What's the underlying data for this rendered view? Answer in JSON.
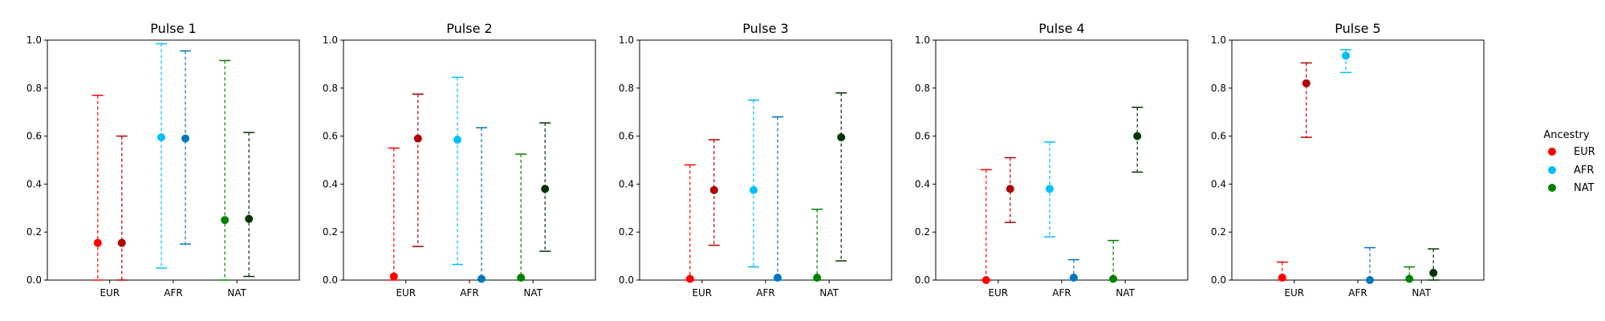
{
  "chart_data": [
    {
      "type": "errorbar",
      "title": "Pulse 1",
      "categories": [
        "EUR",
        "AFR",
        "NAT"
      ],
      "ylim": [
        0,
        1
      ],
      "yticks": [
        "0.0",
        "0.2",
        "0.4",
        "0.6",
        "0.8",
        "1.0"
      ],
      "points": [
        {
          "category": "EUR",
          "slot": 0,
          "color": "#ff0000",
          "y": 0.155,
          "low": 0.0,
          "high": 0.77
        },
        {
          "category": "EUR",
          "slot": 1,
          "color": "#b30000",
          "y": 0.155,
          "low": 0.0,
          "high": 0.6
        },
        {
          "category": "AFR",
          "slot": 0,
          "color": "#00bfff",
          "y": 0.595,
          "low": 0.05,
          "high": 0.985
        },
        {
          "category": "AFR",
          "slot": 1,
          "color": "#0077bb",
          "y": 0.59,
          "low": 0.15,
          "high": 0.955
        },
        {
          "category": "NAT",
          "slot": 0,
          "color": "#008000",
          "y": 0.25,
          "low": 0.0,
          "high": 0.915
        },
        {
          "category": "NAT",
          "slot": 1,
          "color": "#003300",
          "y": 0.255,
          "low": 0.015,
          "high": 0.615
        }
      ]
    },
    {
      "type": "errorbar",
      "title": "Pulse 2",
      "categories": [
        "EUR",
        "AFR",
        "NAT"
      ],
      "ylim": [
        0,
        1
      ],
      "yticks": [
        "0.0",
        "0.2",
        "0.4",
        "0.6",
        "0.8",
        "1.0"
      ],
      "points": [
        {
          "category": "EUR",
          "slot": 0,
          "color": "#ff0000",
          "y": 0.015,
          "low": 0.0,
          "high": 0.55
        },
        {
          "category": "EUR",
          "slot": 1,
          "color": "#b30000",
          "y": 0.59,
          "low": 0.14,
          "high": 0.775
        },
        {
          "category": "AFR",
          "slot": 0,
          "color": "#00bfff",
          "y": 0.585,
          "low": 0.065,
          "high": 0.845
        },
        {
          "category": "AFR",
          "slot": 1,
          "color": "#0077bb",
          "y": 0.005,
          "low": 0.0,
          "high": 0.635
        },
        {
          "category": "NAT",
          "slot": 0,
          "color": "#008000",
          "y": 0.01,
          "low": 0.0,
          "high": 0.525
        },
        {
          "category": "NAT",
          "slot": 1,
          "color": "#003300",
          "y": 0.38,
          "low": 0.12,
          "high": 0.655
        }
      ]
    },
    {
      "type": "errorbar",
      "title": "Pulse 3",
      "categories": [
        "EUR",
        "AFR",
        "NAT"
      ],
      "ylim": [
        0,
        1
      ],
      "yticks": [
        "0.0",
        "0.2",
        "0.4",
        "0.6",
        "0.8",
        "1.0"
      ],
      "points": [
        {
          "category": "EUR",
          "slot": 0,
          "color": "#ff0000",
          "y": 0.005,
          "low": 0.0,
          "high": 0.48
        },
        {
          "category": "EUR",
          "slot": 1,
          "color": "#b30000",
          "y": 0.375,
          "low": 0.145,
          "high": 0.585
        },
        {
          "category": "AFR",
          "slot": 0,
          "color": "#00bfff",
          "y": 0.375,
          "low": 0.055,
          "high": 0.75
        },
        {
          "category": "AFR",
          "slot": 1,
          "color": "#0077bb",
          "y": 0.01,
          "low": 0.0,
          "high": 0.68
        },
        {
          "category": "NAT",
          "slot": 0,
          "color": "#008000",
          "y": 0.01,
          "low": 0.0,
          "high": 0.295
        },
        {
          "category": "NAT",
          "slot": 1,
          "color": "#003300",
          "y": 0.595,
          "low": 0.08,
          "high": 0.78
        }
      ]
    },
    {
      "type": "errorbar",
      "title": "Pulse 4",
      "categories": [
        "EUR",
        "AFR",
        "NAT"
      ],
      "ylim": [
        0,
        1
      ],
      "yticks": [
        "0.0",
        "0.2",
        "0.4",
        "0.6",
        "0.8",
        "1.0"
      ],
      "points": [
        {
          "category": "EUR",
          "slot": 0,
          "color": "#ff0000",
          "y": 0.0,
          "low": 0.0,
          "high": 0.46
        },
        {
          "category": "EUR",
          "slot": 1,
          "color": "#b30000",
          "y": 0.38,
          "low": 0.24,
          "high": 0.51
        },
        {
          "category": "AFR",
          "slot": 0,
          "color": "#00bfff",
          "y": 0.38,
          "low": 0.18,
          "high": 0.575
        },
        {
          "category": "AFR",
          "slot": 1,
          "color": "#0077bb",
          "y": 0.01,
          "low": 0.0,
          "high": 0.085
        },
        {
          "category": "NAT",
          "slot": 0,
          "color": "#008000",
          "y": 0.005,
          "low": 0.0,
          "high": 0.165
        },
        {
          "category": "NAT",
          "slot": 1,
          "color": "#003300",
          "y": 0.6,
          "low": 0.45,
          "high": 0.72
        }
      ]
    },
    {
      "type": "errorbar",
      "title": "Pulse 5",
      "categories": [
        "EUR",
        "AFR",
        "NAT"
      ],
      "ylim": [
        0,
        1
      ],
      "yticks": [
        "0.0",
        "0.2",
        "0.4",
        "0.6",
        "0.8",
        "1.0"
      ],
      "points": [
        {
          "category": "EUR",
          "slot": 0,
          "color": "#ff0000",
          "y": 0.01,
          "low": 0.0,
          "high": 0.075
        },
        {
          "category": "EUR",
          "slot": 1,
          "color": "#b30000",
          "y": 0.82,
          "low": 0.595,
          "high": 0.905
        },
        {
          "category": "AFR",
          "slot": 0,
          "color": "#00bfff",
          "y": 0.935,
          "low": 0.865,
          "high": 0.96
        },
        {
          "category": "AFR",
          "slot": 1,
          "color": "#0077bb",
          "y": 0.0,
          "low": 0.0,
          "high": 0.135
        },
        {
          "category": "NAT",
          "slot": 0,
          "color": "#008000",
          "y": 0.005,
          "low": 0.0,
          "high": 0.055
        },
        {
          "category": "NAT",
          "slot": 1,
          "color": "#003300",
          "y": 0.03,
          "low": 0.0,
          "high": 0.13
        }
      ]
    }
  ],
  "legend": {
    "title": "Ancestry",
    "placement": "right",
    "entries": [
      {
        "label": "EUR",
        "color": "#ff0000"
      },
      {
        "label": "AFR",
        "color": "#00bfff"
      },
      {
        "label": "NAT",
        "color": "#008000"
      }
    ]
  }
}
